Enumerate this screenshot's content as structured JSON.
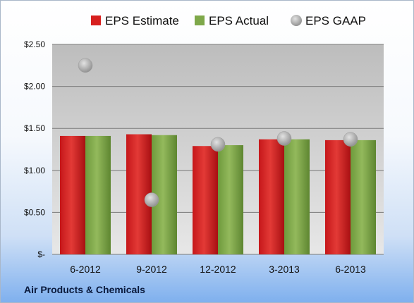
{
  "company": "Air Products & Chemicals",
  "chart_data": {
    "type": "bar",
    "categories": [
      "6-2012",
      "9-2012",
      "12-2012",
      "3-2013",
      "6-2013"
    ],
    "series": [
      {
        "name": "EPS Estimate",
        "kind": "bar",
        "color": "#d7201f",
        "values": [
          1.41,
          1.43,
          1.29,
          1.37,
          1.36
        ]
      },
      {
        "name": "EPS Actual",
        "kind": "bar",
        "color": "#7ea84a",
        "values": [
          1.41,
          1.42,
          1.3,
          1.37,
          1.36
        ]
      },
      {
        "name": "EPS GAAP",
        "kind": "marker",
        "color": "#a9a9a9",
        "values": [
          2.25,
          0.65,
          1.31,
          1.38,
          1.37
        ]
      }
    ],
    "ylim": [
      0,
      2.5
    ],
    "yticks": [
      0,
      0.5,
      1.0,
      1.5,
      2.0,
      2.5
    ],
    "ytick_labels": [
      "$-",
      "$0.50",
      "$1.00",
      "$1.50",
      "$2.00",
      "$2.50"
    ],
    "grid": true,
    "legend_position": "top"
  }
}
